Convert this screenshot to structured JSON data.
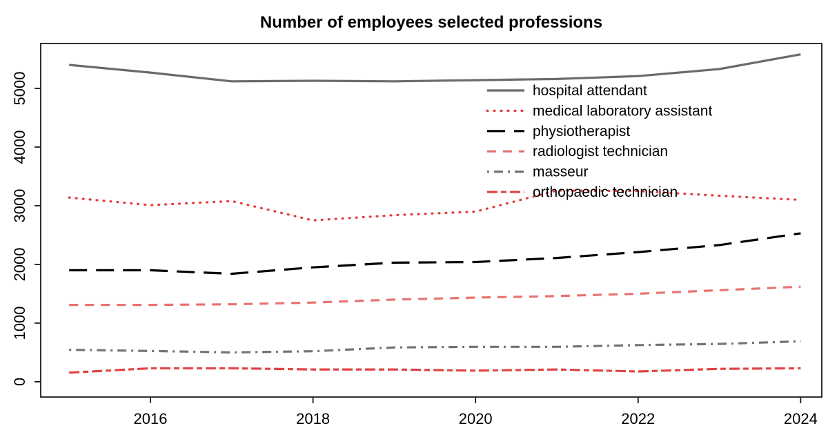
{
  "chart_data": {
    "type": "line",
    "title": "Number of employees selected professions",
    "xlabel": "",
    "ylabel": "",
    "x": [
      2015,
      2016,
      2017,
      2018,
      2019,
      2020,
      2021,
      2022,
      2023,
      2024
    ],
    "x_tick_labels": [
      "2016",
      "2018",
      "2020",
      "2022",
      "2024"
    ],
    "x_ticks": [
      2016,
      2018,
      2020,
      2022,
      2024
    ],
    "y_tick_labels": [
      "0",
      "1000",
      "2000",
      "3000",
      "4000",
      "5000"
    ],
    "y_ticks": [
      0,
      1000,
      2000,
      3000,
      4000,
      5000
    ],
    "xlim": [
      2014.65,
      2024.26
    ],
    "ylim": [
      -260,
      5765
    ],
    "grid": false,
    "legend_position": "inside-upper-right",
    "background": "#ffffff",
    "box_color": "#1a1a1a",
    "series": [
      {
        "name": "hospital attendant",
        "color": "#6b6b6b",
        "linetype": "solid",
        "values": [
          5400,
          5270,
          5120,
          5130,
          5120,
          5140,
          5160,
          5210,
          5330,
          5580
        ]
      },
      {
        "name": "medical laboratory assistant",
        "color": "#e23b3b",
        "linetype": "dotted",
        "values": [
          3140,
          3010,
          3080,
          2750,
          2840,
          2900,
          3260,
          3250,
          3170,
          3100
        ]
      },
      {
        "name": "physiotherapist",
        "color": "#000000",
        "linetype": "longdash",
        "values": [
          1900,
          1900,
          1840,
          1950,
          2030,
          2040,
          2110,
          2210,
          2330,
          2530
        ]
      },
      {
        "name": "radiologist technician",
        "color": "#e87272",
        "linetype": "dashed",
        "values": [
          1310,
          1310,
          1320,
          1350,
          1400,
          1435,
          1460,
          1500,
          1560,
          1620
        ]
      },
      {
        "name": "masseur",
        "color": "#737373",
        "linetype": "dashdot",
        "values": [
          545,
          525,
          500,
          520,
          585,
          595,
          595,
          625,
          645,
          690
        ]
      },
      {
        "name": "orthopaedic technician",
        "color": "#e04444",
        "linetype": "twodash",
        "values": [
          155,
          230,
          230,
          210,
          210,
          190,
          210,
          175,
          220,
          230
        ]
      }
    ]
  }
}
